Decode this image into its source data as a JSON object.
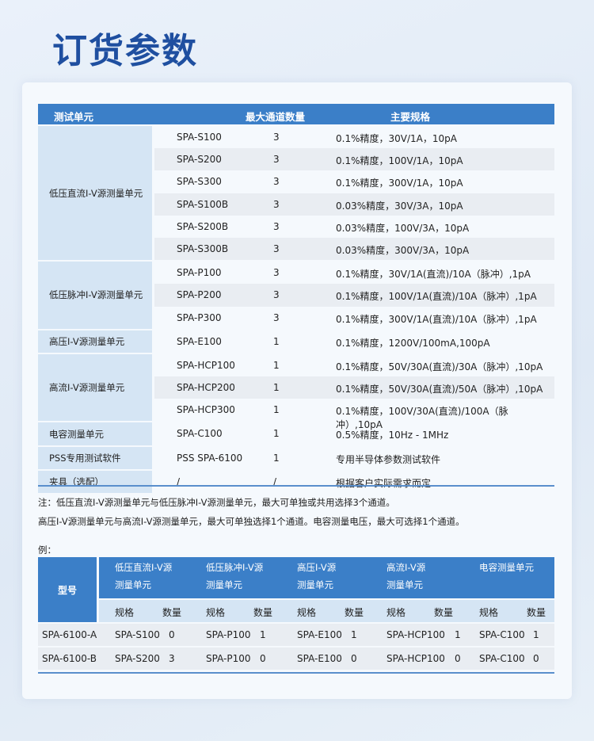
{
  "title": "订货参数",
  "main_table": {
    "headers": [
      "测试单元",
      "最大通道数量",
      "主要规格"
    ],
    "groups": [
      {
        "unit": "低压直流I-V源测量单元",
        "rows": [
          [
            "SPA-S100",
            "3",
            "0.1%精度，30V/1A，10pA"
          ],
          [
            "SPA-S200",
            "3",
            "0.1%精度，100V/1A，10pA"
          ],
          [
            "SPA-S300",
            "3",
            "0.1%精度，300V/1A，10pA"
          ],
          [
            "SPA-S100B",
            "3",
            "0.03%精度，30V/3A，10pA"
          ],
          [
            "SPA-S200B",
            "3",
            "0.03%精度，100V/3A，10pA"
          ],
          [
            "SPA-S300B",
            "3",
            "0.03%精度，300V/3A，10pA"
          ]
        ]
      },
      {
        "unit": "低压脉冲I-V源测量单元",
        "rows": [
          [
            "SPA-P100",
            "3",
            "0.1%精度，30V/1A(直流)/10A（脉冲）,1pA"
          ],
          [
            "SPA-P200",
            "3",
            "0.1%精度，100V/1A(直流)/10A（脉冲）,1pA"
          ],
          [
            "SPA-P300",
            "3",
            "0.1%精度，300V/1A(直流)/10A（脉冲）,1pA"
          ]
        ]
      },
      {
        "unit": "高压I-V源测量单元",
        "rows": [
          [
            "SPA-E100",
            "1",
            "0.1%精度，1200V/100mA,100pA"
          ]
        ]
      },
      {
        "unit": "高流I-V源测量单元",
        "rows": [
          [
            "SPA-HCP100",
            "1",
            "0.1%精度，50V/30A(直流)/30A（脉冲）,10pA"
          ],
          [
            "SPA-HCP200",
            "1",
            "0.1%精度，50V/30A(直流)/50A（脉冲）,10pA"
          ],
          [
            "SPA-HCP300",
            "1",
            "0.1%精度，100V/30A(直流)/100A（脉冲）,10pA"
          ]
        ]
      },
      {
        "unit": "电容测量单元",
        "rows": [
          [
            "SPA-C100",
            "1",
            "0.5%精度，10Hz - 1MHz"
          ]
        ]
      },
      {
        "unit": "PSS专用测试软件",
        "rows": [
          [
            "PSS SPA-6100",
            "1",
            "专用半导体参数测试软件"
          ]
        ]
      },
      {
        "unit": "夹具（选配）",
        "rows": [
          [
            "/",
            "/",
            "根据客户实际需求而定"
          ]
        ]
      }
    ]
  },
  "notes": [
    "注：低压直流I-V源测量单元与低压脉冲I-V源测量单元，最大可单独或共用选择3个通道。",
    "高压I-V源测量单元与高流I-V源测量单元，最大可单独选择1个通道。电容测量电压，最大可选择1个通道。"
  ],
  "example": {
    "label": "例：",
    "model_header": "型号",
    "groups": [
      [
        "低压直流I-V源",
        "测量单元"
      ],
      [
        "低压脉冲I-V源",
        "测量单元"
      ],
      [
        "高压I-V源",
        "测量单元"
      ],
      [
        "高流I-V源",
        "测量单元"
      ],
      [
        "电容测量单元",
        ""
      ]
    ],
    "spec_label": "规格",
    "qty_label": "数量",
    "rows": [
      {
        "model": "SPA-6100-A",
        "cells": [
          [
            "SPA-S100",
            "0"
          ],
          [
            "SPA-P100",
            "1"
          ],
          [
            "SPA-E100",
            "1"
          ],
          [
            "SPA-HCP100",
            "1"
          ],
          [
            "SPA-C100",
            "1"
          ]
        ]
      },
      {
        "model": "SPA-6100-B",
        "cells": [
          [
            "SPA-S200",
            "3"
          ],
          [
            "SPA-P100",
            "0"
          ],
          [
            "SPA-E100",
            "0"
          ],
          [
            "SPA-HCP100",
            "0"
          ],
          [
            "SPA-C100",
            "0"
          ]
        ]
      }
    ]
  },
  "colors": {
    "primary": "#3b7fc8",
    "title": "#1f4fa0",
    "unit_bg": "#d5e5f4"
  }
}
